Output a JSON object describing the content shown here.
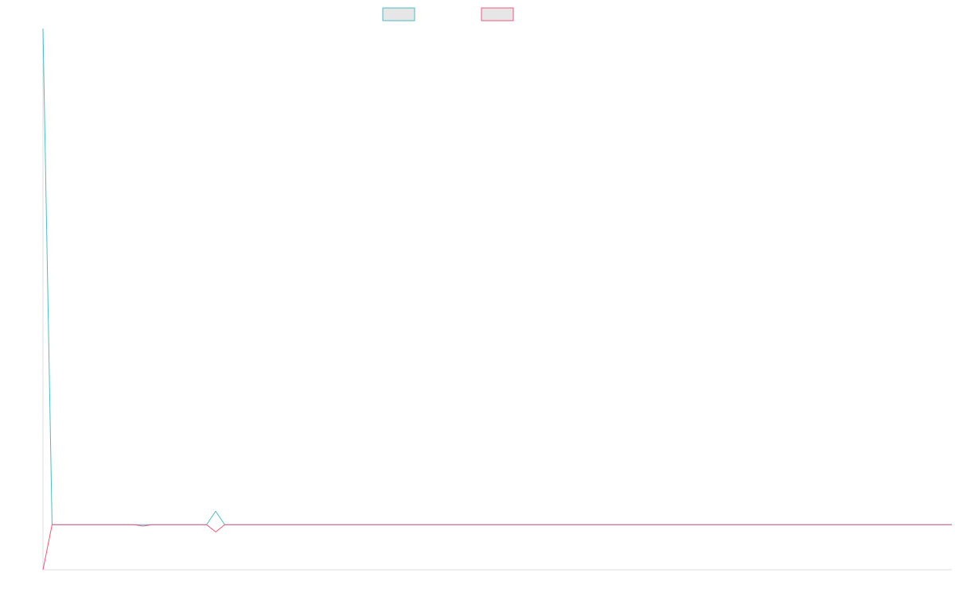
{
  "chart_data": {
    "type": "line",
    "title": "",
    "xlabel": "",
    "ylabel": "",
    "grid": false,
    "legend": "top-center",
    "xlim": [
      0,
      100
    ],
    "ylim": [
      -5,
      55
    ],
    "series": [
      {
        "color": "#4bbcc4",
        "x": [
          0,
          1,
          18,
          19,
          20,
          100
        ],
        "y": [
          55,
          0,
          0,
          1.5,
          0,
          0
        ]
      },
      {
        "color": "#f0567c",
        "x": [
          0,
          1,
          10,
          11,
          12,
          18,
          19,
          20,
          100
        ],
        "y": [
          -5,
          0,
          0,
          -0.15,
          0,
          0,
          -0.8,
          0,
          0
        ]
      }
    ]
  }
}
